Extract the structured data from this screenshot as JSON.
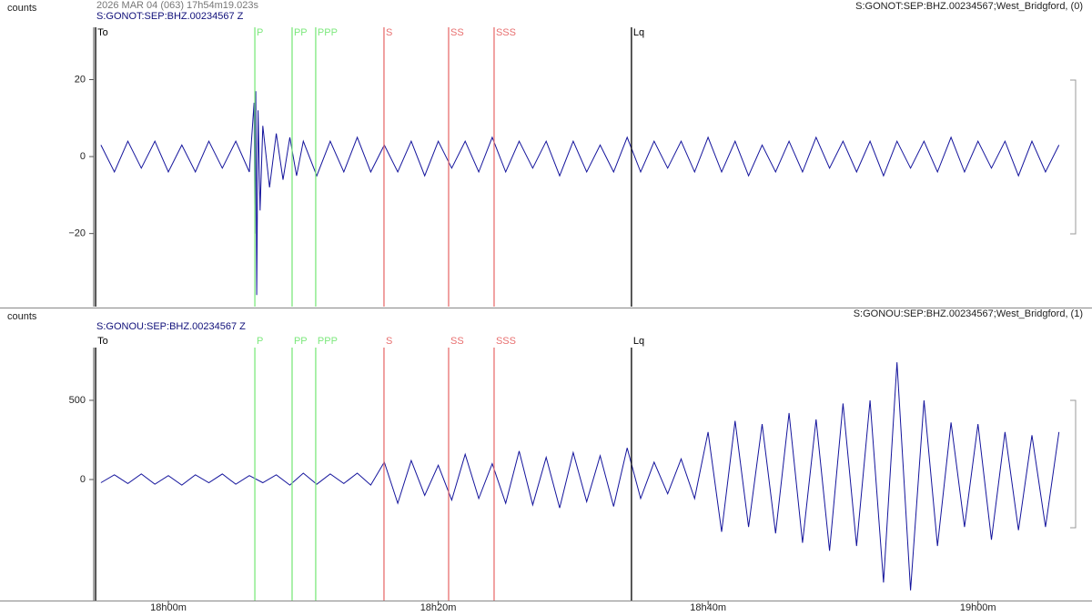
{
  "chart_data": [
    {
      "type": "line",
      "y_label": "counts",
      "time_label": "2026 MAR 04 (063)  17h54m19.023s",
      "title": "S:GONOT:SEP:BHZ.00234567 Z",
      "station_label": "S:GONOT:SEP:BHZ.00234567;West_Bridgford, (0)",
      "xlim": [
        -5.53,
        66.83
      ],
      "ylim": [
        -39,
        33.6
      ],
      "yticks": [
        {
          "value": -20,
          "label": "−20"
        },
        0,
        20
      ],
      "phases": [
        {
          "label": "To",
          "x": -5.39,
          "color": "#000000"
        },
        {
          "label": "P",
          "x": 6.41,
          "color": "#7de87d"
        },
        {
          "label": "PP",
          "x": 9.17,
          "color": "#7de87d"
        },
        {
          "label": "PPP",
          "x": 10.92,
          "color": "#7de87d"
        },
        {
          "label": "S",
          "x": 15.98,
          "color": "#e87070"
        },
        {
          "label": "SS",
          "x": 20.77,
          "color": "#e87070"
        },
        {
          "label": "SSS",
          "x": 24.14,
          "color": "#e87070"
        },
        {
          "label": "Lq",
          "x": 34.32,
          "color": "#000000"
        }
      ],
      "series": [
        {
          "color": "#14149c",
          "x": [
            -5,
            -4,
            -3,
            -2,
            -1,
            0,
            1,
            2,
            3,
            4,
            5,
            6,
            6.35,
            6.42,
            6.48,
            6.55,
            6.65,
            6.8,
            7,
            7.5,
            8,
            8.5,
            9,
            9.5,
            10,
            11,
            12,
            13,
            14,
            15,
            16,
            17,
            18,
            19,
            20,
            21,
            22,
            23,
            24,
            25,
            26,
            27,
            28,
            29,
            30,
            31,
            32,
            33,
            34,
            35,
            36,
            37,
            38,
            39,
            40,
            41,
            42,
            43,
            44,
            45,
            46,
            47,
            48,
            49,
            50,
            51,
            52,
            53,
            54,
            55,
            56,
            57,
            58,
            59,
            60,
            61,
            62,
            63,
            64,
            65,
            66
          ],
          "values": [
            3,
            -4,
            4,
            -3,
            4,
            -4,
            3,
            -4,
            4,
            -3,
            4,
            -4,
            14,
            -20,
            17,
            -36,
            12,
            -14,
            8,
            -8,
            6,
            -6,
            5,
            -5,
            4,
            -5,
            4,
            -4,
            5,
            -4,
            3,
            -4,
            4,
            -5,
            4,
            -3,
            4,
            -4,
            5,
            -4,
            4,
            -3,
            4,
            -5,
            4,
            -4,
            3,
            -4,
            5,
            -4,
            4,
            -3,
            4,
            -4,
            5,
            -4,
            4,
            -5,
            3,
            -4,
            4,
            -4,
            5,
            -3,
            4,
            -4,
            4,
            -5,
            4,
            -3,
            4,
            -4,
            5,
            -4,
            4,
            -3,
            4,
            -5,
            4,
            -4,
            3
          ]
        }
      ]
    },
    {
      "type": "line",
      "y_label": "counts",
      "title": "S:GONOU:SEP:BHZ.00234567 Z",
      "station_label": "S:GONOU:SEP:BHZ.00234567;West_Bridgford, (1)",
      "xlim": [
        -5.53,
        66.83
      ],
      "ylim": [
        -764,
        833
      ],
      "yticks": [
        0,
        500
      ],
      "xticks": [
        {
          "value": 0,
          "label": "18h00m"
        },
        {
          "value": 20,
          "label": "18h20m"
        },
        {
          "value": 40,
          "label": "18h40m"
        },
        {
          "value": 60,
          "label": "19h00m"
        }
      ],
      "phases": [
        {
          "label": "To",
          "x": -5.39,
          "color": "#000000"
        },
        {
          "label": "P",
          "x": 6.41,
          "color": "#7de87d"
        },
        {
          "label": "PP",
          "x": 9.17,
          "color": "#7de87d"
        },
        {
          "label": "PPP",
          "x": 10.92,
          "color": "#7de87d"
        },
        {
          "label": "S",
          "x": 15.98,
          "color": "#e87070"
        },
        {
          "label": "SS",
          "x": 20.77,
          "color": "#e87070"
        },
        {
          "label": "SSS",
          "x": 24.14,
          "color": "#e87070"
        },
        {
          "label": "Lq",
          "x": 34.32,
          "color": "#000000"
        }
      ],
      "series": [
        {
          "color": "#14149c",
          "x": [
            -5,
            -4,
            -3,
            -2,
            -1,
            0,
            1,
            2,
            3,
            4,
            5,
            6,
            7,
            8,
            9,
            10,
            11,
            12,
            13,
            14,
            15,
            16,
            17,
            18,
            19,
            20,
            21,
            22,
            23,
            24,
            25,
            26,
            27,
            28,
            29,
            30,
            31,
            32,
            33,
            34,
            35,
            36,
            37,
            38,
            39,
            40,
            41,
            42,
            43,
            44,
            45,
            46,
            47,
            48,
            49,
            50,
            51,
            52,
            53,
            54,
            55,
            56,
            57,
            58,
            59,
            60,
            61,
            62,
            63,
            64,
            65,
            66
          ],
          "values": [
            -20,
            30,
            -25,
            35,
            -30,
            25,
            -35,
            30,
            -20,
            35,
            -30,
            25,
            -20,
            30,
            -35,
            40,
            -30,
            35,
            -25,
            40,
            -35,
            110,
            -150,
            120,
            -100,
            90,
            -130,
            160,
            -120,
            100,
            -150,
            180,
            -160,
            140,
            -180,
            170,
            -140,
            150,
            -170,
            200,
            -120,
            110,
            -90,
            130,
            -120,
            300,
            -330,
            370,
            -300,
            350,
            -340,
            420,
            -400,
            380,
            -450,
            480,
            -420,
            500,
            -650,
            740,
            -700,
            500,
            -420,
            360,
            -300,
            350,
            -380,
            300,
            -320,
            280,
            -300,
            300
          ]
        }
      ]
    }
  ]
}
